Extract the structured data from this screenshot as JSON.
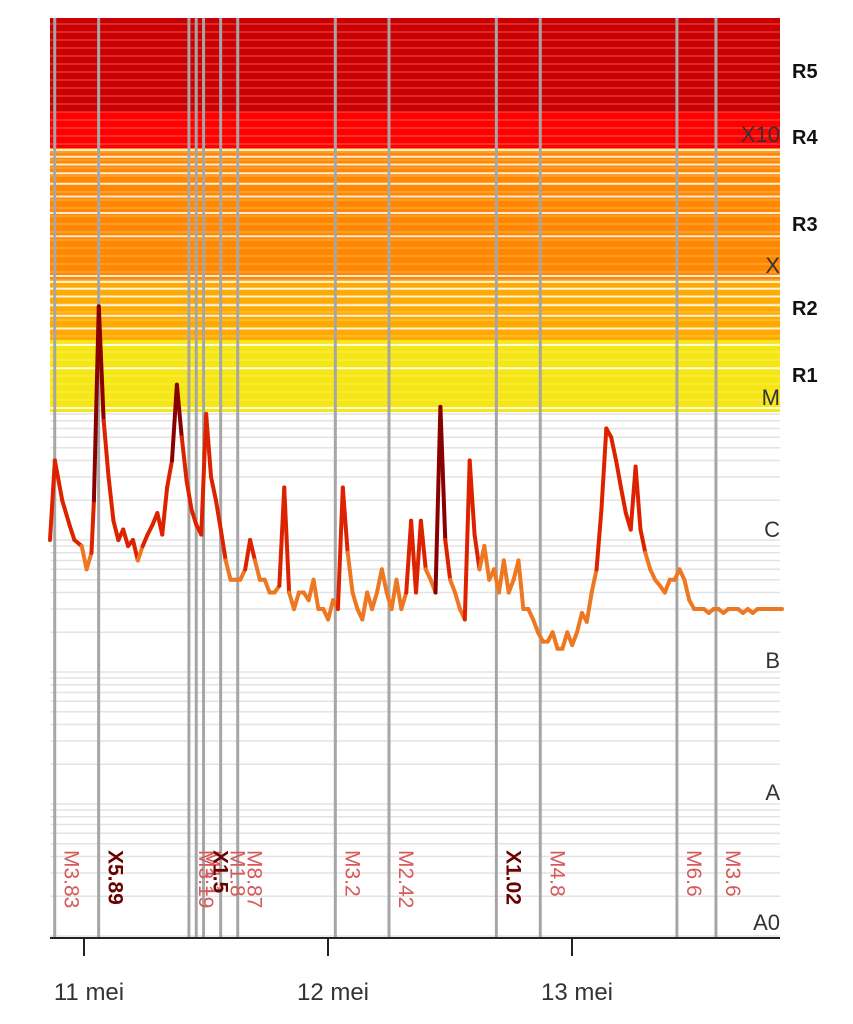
{
  "chart_data": {
    "type": "line",
    "title": "",
    "xlabel": "",
    "ylabel": "",
    "x_ticks": [
      "11 mei",
      "12 mei",
      "13 mei"
    ],
    "flare_classes": [
      "A0",
      "A",
      "B",
      "C",
      "M",
      "X",
      "X10"
    ],
    "radio_blackout_scale": [
      "R1",
      "R2",
      "R3",
      "R4",
      "R5"
    ],
    "zones": [
      {
        "label": "R5",
        "color": "#cc0000"
      },
      {
        "label": "R4",
        "color": "#ff0000"
      },
      {
        "label": "R3",
        "color": "#ff8800"
      },
      {
        "label": "R2",
        "color": "#ffaa00"
      },
      {
        "label": "R1",
        "color": "#f5e614"
      }
    ],
    "line_colors": {
      "below_m": "#ee7722",
      "m_range": "#dd2200",
      "x_range": "#880000"
    },
    "series": [
      {
        "x": [
          0.0,
          0.02,
          0.05,
          0.08,
          0.1,
          0.13,
          0.15,
          0.17,
          0.18,
          0.2,
          0.22,
          0.24,
          0.26,
          0.28,
          0.3,
          0.32,
          0.34,
          0.36,
          0.38,
          0.4,
          0.42,
          0.44,
          0.46,
          0.48,
          0.5,
          0.52,
          0.54,
          0.56,
          0.58,
          0.6,
          0.62,
          0.64,
          0.66,
          0.68,
          0.7,
          0.72,
          0.74,
          0.76,
          0.78,
          0.8,
          0.82,
          0.84,
          0.86,
          0.88,
          0.9,
          0.92,
          0.94,
          0.96,
          0.98,
          1.0,
          1.02,
          1.04,
          1.06,
          1.08,
          1.1,
          1.12,
          1.14,
          1.16,
          1.18,
          1.2,
          1.22,
          1.24,
          1.26,
          1.28,
          1.3,
          1.32,
          1.34,
          1.36,
          1.38,
          1.4,
          1.42,
          1.44,
          1.46,
          1.48,
          1.5,
          1.52,
          1.54,
          1.56,
          1.58,
          1.6,
          1.62,
          1.64,
          1.66,
          1.68,
          1.7,
          1.72,
          1.74,
          1.76,
          1.78,
          1.8,
          1.82,
          1.84,
          1.86,
          1.88,
          1.9,
          1.92,
          1.94,
          1.96,
          1.98,
          2.0,
          2.02,
          2.04,
          2.06,
          2.08,
          2.1,
          2.12,
          2.14,
          2.16,
          2.18,
          2.2,
          2.22,
          2.24,
          2.26,
          2.28,
          2.3,
          2.32,
          2.34,
          2.36,
          2.38,
          2.4,
          2.42,
          2.44,
          2.46,
          2.48,
          2.5,
          2.52,
          2.54,
          2.56,
          2.58,
          2.6,
          2.62,
          2.64,
          2.66,
          2.68,
          2.7,
          2.72,
          2.74,
          2.76,
          2.78,
          2.8,
          2.82,
          2.84,
          2.86,
          2.88,
          2.9,
          2.92,
          2.94,
          2.96,
          2.98,
          3.0
        ],
        "y": [
          1e-05,
          4e-05,
          2e-05,
          1.3e-05,
          1e-05,
          9e-06,
          6e-06,
          8e-06,
          2e-05,
          0.000589,
          8e-05,
          3e-05,
          1.4e-05,
          1e-05,
          1.2e-05,
          9e-06,
          1e-05,
          7e-06,
          9e-06,
          1.1e-05,
          1.3e-05,
          1.6e-05,
          1.1e-05,
          2.5e-05,
          4e-05,
          0.00015,
          6e-05,
          2.8e-05,
          1.7e-05,
          1.3e-05,
          1.1e-05,
          9e-05,
          3e-05,
          2e-05,
          1.2e-05,
          7e-06,
          5e-06,
          5e-06,
          5e-06,
          6e-06,
          1e-05,
          7e-06,
          5e-06,
          5e-06,
          4e-06,
          4e-06,
          4.5e-06,
          2.5e-05,
          4e-06,
          3e-06,
          4e-06,
          4e-06,
          3.5e-06,
          5e-06,
          3e-06,
          3e-06,
          2.5e-06,
          3.5e-06,
          3e-06,
          2.5e-05,
          8e-06,
          4e-06,
          3e-06,
          2.5e-06,
          4e-06,
          3e-06,
          4e-06,
          6e-06,
          4e-06,
          3e-06,
          5e-06,
          3e-06,
          4e-06,
          1.4e-05,
          4e-06,
          1.4e-05,
          6e-06,
          5e-06,
          4e-06,
          0.000102,
          1e-05,
          5e-06,
          4e-06,
          3e-06,
          2.5e-06,
          4e-05,
          1.1e-05,
          6e-06,
          9e-06,
          5e-06,
          6e-06,
          4e-06,
          7e-06,
          4e-06,
          5e-06,
          7e-06,
          3e-06,
          3e-06,
          2.5e-06,
          2e-06,
          1.7e-06,
          1.7e-06,
          2e-06,
          1.5e-06,
          1.5e-06,
          2e-06,
          1.6e-06,
          2e-06,
          2.8e-06,
          2.4e-06,
          4e-06,
          6e-06,
          1.7e-05,
          7e-05,
          6e-05,
          4e-05,
          2.5e-05,
          1.6e-05,
          1.2e-05,
          3.6e-05,
          1.2e-05,
          8e-06,
          6e-06,
          5e-06,
          4.5e-06,
          4e-06,
          5e-06,
          5e-06,
          6e-06,
          5e-06,
          3.5e-06,
          3e-06,
          3e-06,
          3e-06,
          2.8e-06,
          3e-06,
          3e-06,
          2.8e-06,
          3e-06,
          3e-06,
          3e-06,
          2.8e-06,
          3e-06,
          2.8e-06,
          3e-06,
          3e-06,
          3e-06,
          3e-06,
          3e-06,
          3e-06
        ]
      }
    ],
    "flares": [
      {
        "label": "M3.83",
        "x": -0.12,
        "value": 3.83e-05
      },
      {
        "label": "X5.89",
        "x": 0.06,
        "value": 0.000589
      },
      {
        "label": "M3.19",
        "x": 0.43,
        "value": 3.19e-05
      },
      {
        "label": "M1.1",
        "x": 0.46,
        "value": 1.1e-05
      },
      {
        "label": "X1.5",
        "x": 0.49,
        "value": 0.00015
      },
      {
        "label": "M1.8",
        "x": 0.56,
        "value": 1.8e-05
      },
      {
        "label": "M8.87",
        "x": 0.63,
        "value": 8.87e-05
      },
      {
        "label": "M3.2",
        "x": 1.03,
        "value": 3.2e-05
      },
      {
        "label": "M2.42",
        "x": 1.25,
        "value": 2.42e-05
      },
      {
        "label": "X1.02",
        "x": 1.69,
        "value": 0.000102
      },
      {
        "label": "M4.8",
        "x": 1.87,
        "value": 4.8e-05
      },
      {
        "label": "M6.6",
        "x": 2.43,
        "value": 6.6e-05
      },
      {
        "label": "M3.6",
        "x": 2.59,
        "value": 3.6e-05
      }
    ]
  }
}
